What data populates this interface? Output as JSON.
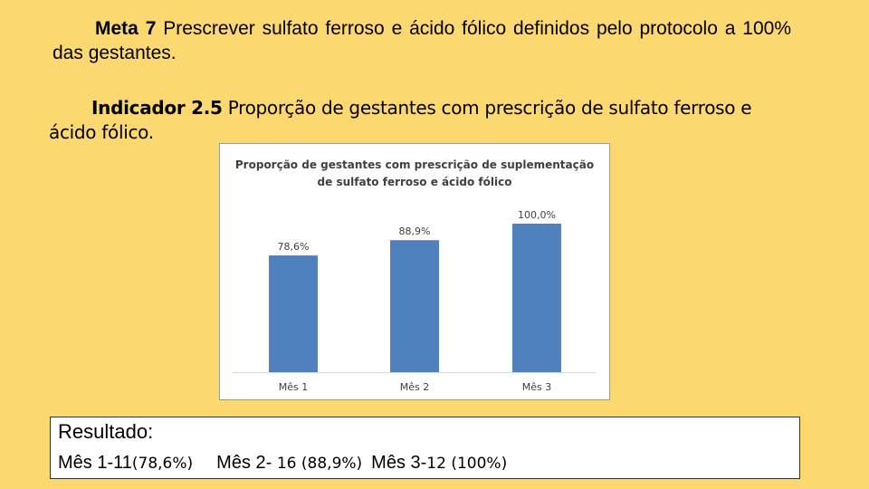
{
  "meta": {
    "label": "Meta 7",
    "text": "Prescrever sulfato ferroso e ácido fólico definidos pelo protocolo a 100% das gestantes."
  },
  "indicador": {
    "label": "Indicador 2.5",
    "text": "Proporção de gestantes com prescrição de sulfato ferroso e ácido fólico."
  },
  "chart_data": {
    "type": "bar",
    "title": "Proporção de gestantes com prescrição de suplementação de sulfato ferroso e ácido fólico",
    "title_lines": [
      "Proporção de gestantes com prescrição de suplementação",
      "de sulfato ferroso e ácido fólico"
    ],
    "categories": [
      "Mês 1",
      "Mês 2",
      "Mês 3"
    ],
    "values": [
      78.6,
      88.9,
      100.0
    ],
    "data_labels": [
      "78,6%",
      "88,9%",
      "100,0%"
    ],
    "ylim": [
      0,
      100
    ],
    "bar_color": "#4f81bd",
    "grid": false,
    "xlabel": "",
    "ylabel": ""
  },
  "resultado": {
    "title": "Resultado:",
    "mes1_label": "Mês 1-11",
    "mes1_value": "(78,6%)",
    "mes2_label": "Mês 2-",
    "mes2_value": "16 (88,9%)",
    "mes3_label": "Mês 3-",
    "mes3_value": "12 (100%)"
  }
}
